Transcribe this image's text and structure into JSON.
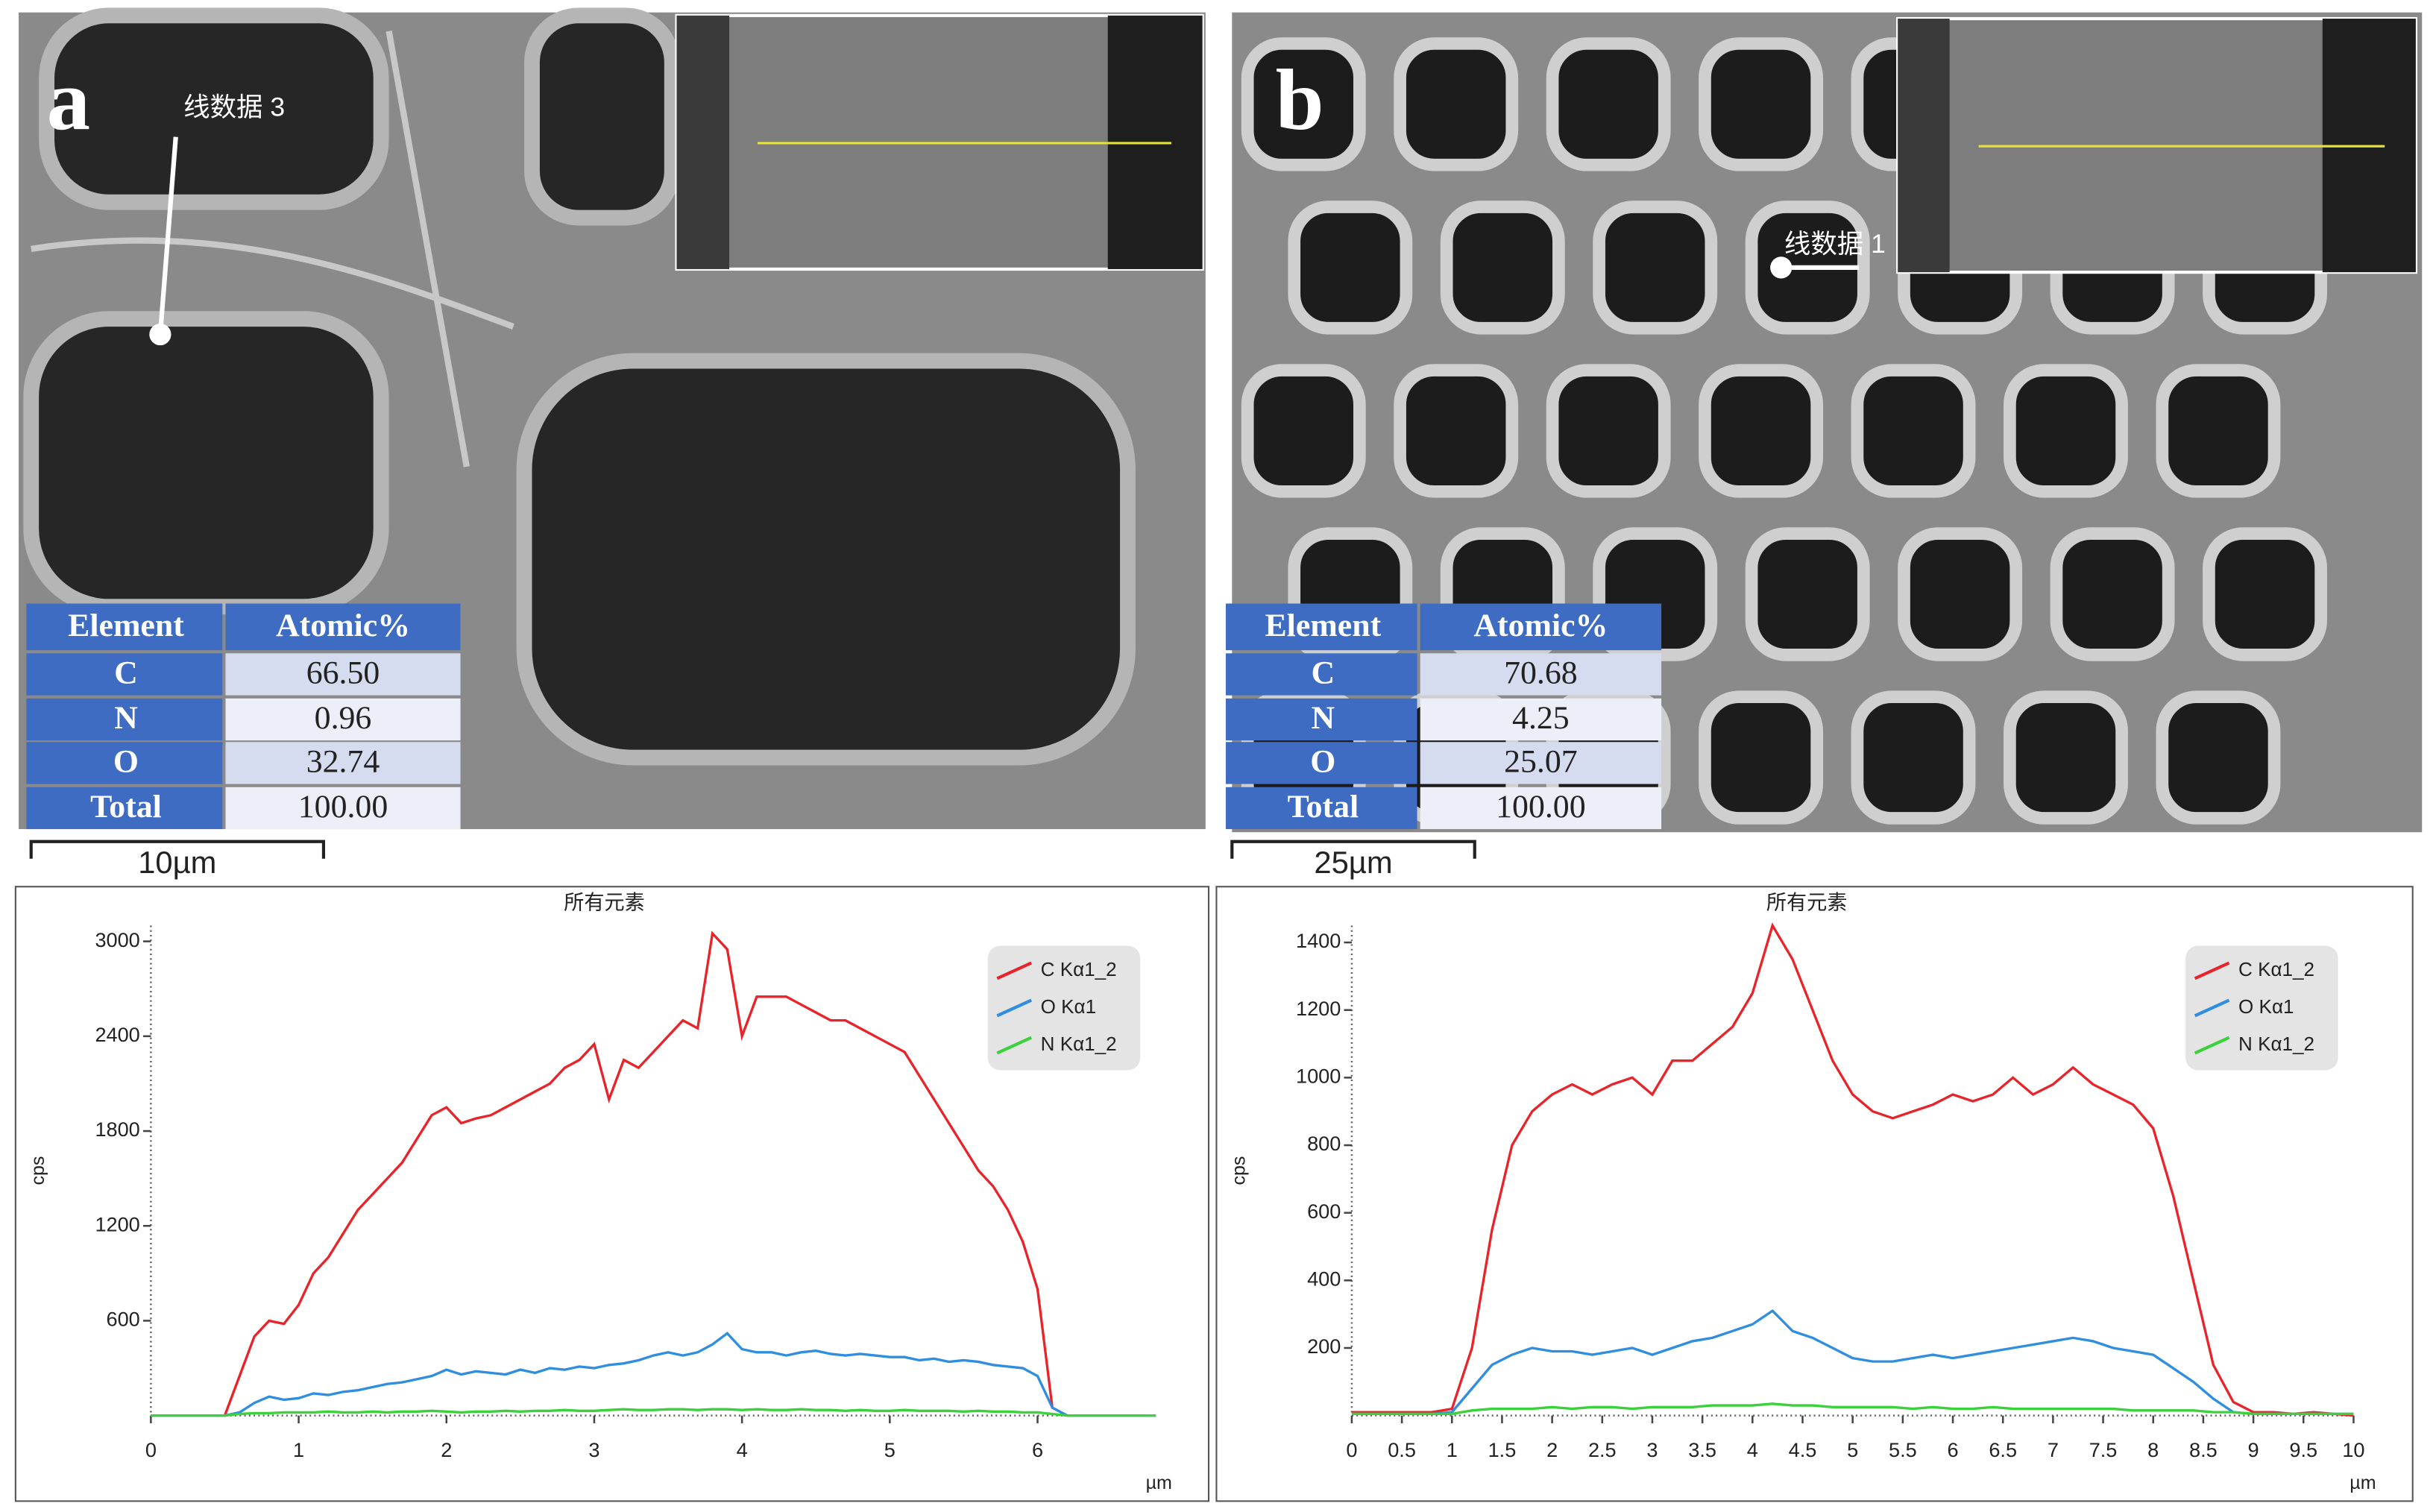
{
  "panels": [
    {
      "label": "a",
      "line_label": "线数据 3",
      "scale_bar": "10µm",
      "table": {
        "header": [
          "Element",
          "Atomic%"
        ],
        "rows": [
          [
            "C",
            "66.50"
          ],
          [
            "N",
            "0.96"
          ],
          [
            "O",
            "32.74"
          ],
          [
            "Total",
            "100.00"
          ]
        ]
      }
    },
    {
      "label": "b",
      "line_label": "线数据 1",
      "scale_bar": "25µm",
      "table": {
        "header": [
          "Element",
          "Atomic%"
        ],
        "rows": [
          [
            "C",
            "70.68"
          ],
          [
            "N",
            "4.25"
          ],
          [
            "O",
            "25.07"
          ],
          [
            "Total",
            "100.00"
          ]
        ]
      }
    }
  ],
  "chart_data": [
    {
      "type": "line",
      "title": "所有元素",
      "y_label": "cps",
      "x_label": "µm",
      "legend": "upper right",
      "xlim": [
        0,
        6.8
      ],
      "ylim": [
        0,
        3100
      ],
      "xticks": [
        0,
        1,
        2,
        3,
        4,
        5,
        6
      ],
      "yticks": [
        600,
        1200,
        1800,
        2400,
        3000
      ],
      "x": [
        0,
        0.1,
        0.2,
        0.3,
        0.4,
        0.5,
        0.6,
        0.7,
        0.8,
        0.9,
        1.0,
        1.1,
        1.2,
        1.3,
        1.4,
        1.5,
        1.6,
        1.7,
        1.8,
        1.9,
        2.0,
        2.1,
        2.2,
        2.3,
        2.4,
        2.5,
        2.6,
        2.7,
        2.8,
        2.9,
        3.0,
        3.1,
        3.2,
        3.3,
        3.4,
        3.5,
        3.6,
        3.7,
        3.8,
        3.9,
        4.0,
        4.1,
        4.2,
        4.3,
        4.4,
        4.5,
        4.6,
        4.7,
        4.8,
        4.9,
        5.0,
        5.1,
        5.2,
        5.3,
        5.4,
        5.5,
        5.6,
        5.7,
        5.8,
        5.9,
        6.0,
        6.1,
        6.2,
        6.3,
        6.4,
        6.5,
        6.6,
        6.7,
        6.8
      ],
      "series": [
        {
          "name": "C Kα1_2",
          "color": "#e8242a",
          "values": [
            0,
            0,
            0,
            0,
            0,
            0,
            250,
            500,
            600,
            580,
            700,
            900,
            1000,
            1150,
            1300,
            1400,
            1500,
            1600,
            1750,
            1900,
            1950,
            1850,
            1880,
            1900,
            1950,
            2000,
            2050,
            2100,
            2200,
            2250,
            2350,
            2000,
            2250,
            2200,
            2300,
            2400,
            2500,
            2450,
            3050,
            2950,
            2400,
            2650,
            2650,
            2650,
            2600,
            2550,
            2500,
            2500,
            2450,
            2400,
            2350,
            2300,
            2150,
            2000,
            1850,
            1700,
            1550,
            1450,
            1300,
            1100,
            800,
            50,
            0,
            0,
            0,
            0,
            0,
            0,
            0
          ]
        },
        {
          "name": "O Kα1",
          "color": "#2f8ee0",
          "values": [
            0,
            0,
            0,
            0,
            0,
            0,
            20,
            80,
            120,
            100,
            110,
            140,
            130,
            150,
            160,
            180,
            200,
            210,
            230,
            250,
            290,
            260,
            280,
            270,
            260,
            290,
            270,
            300,
            290,
            310,
            300,
            320,
            330,
            350,
            380,
            400,
            380,
            400,
            450,
            520,
            420,
            400,
            400,
            380,
            400,
            410,
            390,
            380,
            390,
            380,
            370,
            370,
            350,
            360,
            340,
            350,
            340,
            320,
            310,
            300,
            250,
            50,
            0,
            0,
            0,
            0,
            0,
            0,
            0
          ]
        },
        {
          "name": "N Kα1_2",
          "color": "#3ad13a",
          "values": [
            0,
            0,
            0,
            0,
            0,
            0,
            10,
            15,
            15,
            20,
            20,
            20,
            25,
            20,
            20,
            25,
            20,
            25,
            25,
            30,
            25,
            20,
            25,
            25,
            30,
            25,
            30,
            30,
            35,
            30,
            30,
            35,
            40,
            35,
            35,
            40,
            40,
            35,
            40,
            40,
            35,
            40,
            35,
            35,
            40,
            35,
            35,
            30,
            35,
            30,
            30,
            35,
            30,
            30,
            30,
            25,
            30,
            25,
            25,
            20,
            20,
            10,
            0,
            0,
            0,
            0,
            0,
            0,
            0
          ]
        }
      ]
    },
    {
      "type": "line",
      "title": "所有元素",
      "y_label": "cps",
      "x_label": "µm",
      "legend": "upper right",
      "xlim": [
        0,
        10
      ],
      "ylim": [
        0,
        1450
      ],
      "xticks": [
        0,
        0.5,
        1,
        1.5,
        2,
        2.5,
        3,
        3.5,
        4,
        4.5,
        5,
        5.5,
        6,
        6.5,
        7,
        7.5,
        8,
        8.5,
        9,
        9.5,
        10
      ],
      "yticks": [
        200,
        400,
        600,
        800,
        1000,
        1200,
        1400
      ],
      "x": [
        0,
        0.2,
        0.4,
        0.6,
        0.8,
        1.0,
        1.2,
        1.4,
        1.6,
        1.8,
        2.0,
        2.2,
        2.4,
        2.6,
        2.8,
        3.0,
        3.2,
        3.4,
        3.6,
        3.8,
        4.0,
        4.2,
        4.4,
        4.6,
        4.8,
        5.0,
        5.2,
        5.4,
        5.6,
        5.8,
        6.0,
        6.2,
        6.4,
        6.6,
        6.8,
        7.0,
        7.2,
        7.4,
        7.6,
        7.8,
        8.0,
        8.2,
        8.4,
        8.6,
        8.8,
        9.0,
        9.2,
        9.4,
        9.6,
        9.8,
        10.0
      ],
      "series": [
        {
          "name": "C Kα1_2",
          "color": "#e8242a",
          "values": [
            10,
            10,
            10,
            10,
            10,
            20,
            200,
            550,
            800,
            900,
            950,
            980,
            950,
            980,
            1000,
            950,
            1050,
            1050,
            1100,
            1150,
            1250,
            1450,
            1350,
            1200,
            1050,
            950,
            900,
            880,
            900,
            920,
            950,
            930,
            950,
            1000,
            950,
            980,
            1030,
            980,
            950,
            920,
            850,
            650,
            400,
            150,
            40,
            10,
            10,
            5,
            10,
            5,
            0
          ]
        },
        {
          "name": "O Kα1",
          "color": "#2f8ee0",
          "values": [
            5,
            5,
            5,
            5,
            5,
            10,
            80,
            150,
            180,
            200,
            190,
            190,
            180,
            190,
            200,
            180,
            200,
            220,
            230,
            250,
            270,
            310,
            250,
            230,
            200,
            170,
            160,
            160,
            170,
            180,
            170,
            180,
            190,
            200,
            210,
            220,
            230,
            220,
            200,
            190,
            180,
            140,
            100,
            50,
            10,
            5,
            5,
            5,
            5,
            5,
            5
          ]
        },
        {
          "name": "N Kα1_2",
          "color": "#3ad13a",
          "values": [
            5,
            5,
            5,
            5,
            5,
            5,
            15,
            20,
            20,
            20,
            25,
            20,
            25,
            25,
            20,
            25,
            25,
            25,
            30,
            30,
            30,
            35,
            30,
            30,
            25,
            25,
            25,
            25,
            20,
            25,
            20,
            20,
            25,
            20,
            20,
            20,
            20,
            20,
            20,
            15,
            15,
            15,
            15,
            10,
            10,
            5,
            5,
            5,
            5,
            5,
            5
          ]
        }
      ]
    }
  ]
}
